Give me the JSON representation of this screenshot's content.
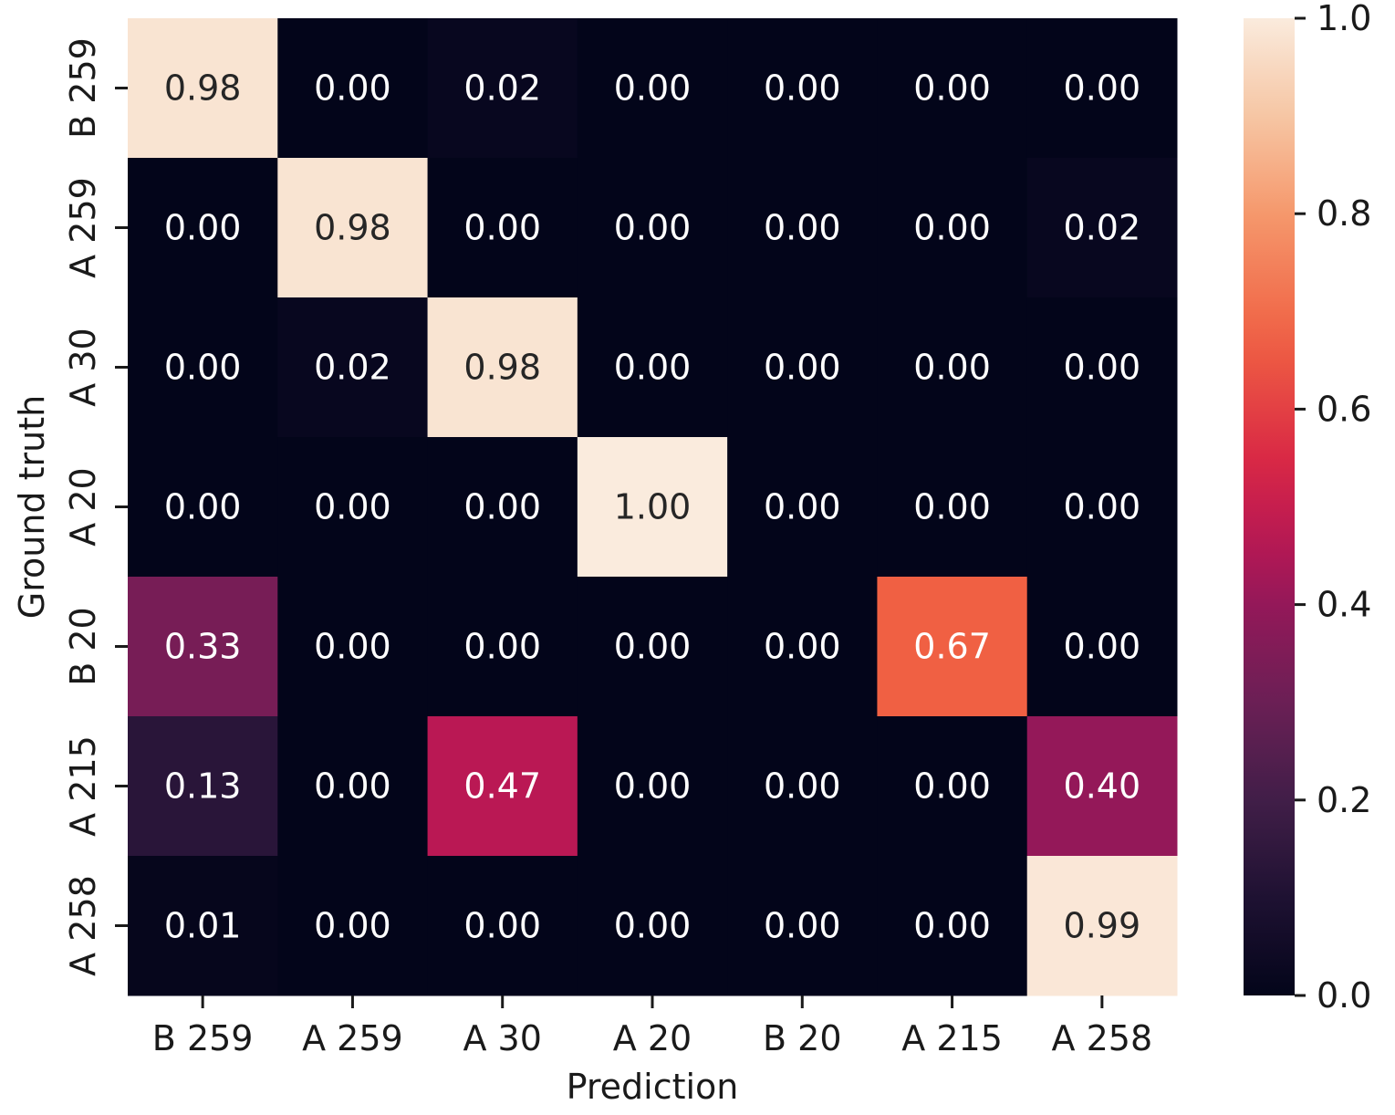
{
  "chart_data": {
    "type": "heatmap",
    "title": "",
    "xlabel": "Prediction",
    "ylabel": "Ground truth",
    "x_categories": [
      "B 259",
      "A 259",
      "A 30",
      "A 20",
      "B 20",
      "A 215",
      "A 258"
    ],
    "y_categories": [
      "B 259",
      "A 259",
      "A 30",
      "A 20",
      "B 20",
      "A 215",
      "A 258"
    ],
    "values": [
      [
        0.98,
        0.0,
        0.02,
        0.0,
        0.0,
        0.0,
        0.0
      ],
      [
        0.0,
        0.98,
        0.0,
        0.0,
        0.0,
        0.0,
        0.02
      ],
      [
        0.0,
        0.02,
        0.98,
        0.0,
        0.0,
        0.0,
        0.0
      ],
      [
        0.0,
        0.0,
        0.0,
        1.0,
        0.0,
        0.0,
        0.0
      ],
      [
        0.33,
        0.0,
        0.0,
        0.0,
        0.0,
        0.67,
        0.0
      ],
      [
        0.13,
        0.0,
        0.47,
        0.0,
        0.0,
        0.0,
        0.4
      ],
      [
        0.01,
        0.0,
        0.0,
        0.0,
        0.0,
        0.0,
        0.99
      ]
    ],
    "value_format": "0.00",
    "colorbar": {
      "range": [
        0.0,
        1.0
      ],
      "ticks": [
        0.0,
        0.2,
        0.4,
        0.6,
        0.8,
        1.0
      ],
      "tick_labels": [
        "0.0",
        "0.2",
        "0.4",
        "0.6",
        "0.8",
        "1.0"
      ],
      "colormap": "rocket"
    },
    "grid": false,
    "legend": "colorbar-right"
  }
}
